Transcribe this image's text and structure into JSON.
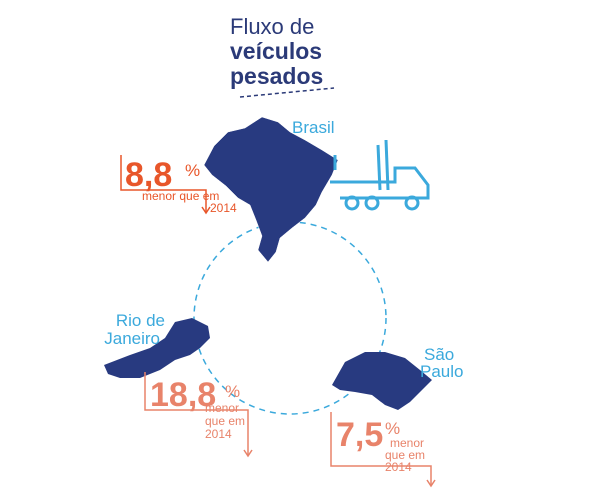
{
  "title": {
    "lines": [
      "Fluxo de",
      "veículos",
      "pesados"
    ]
  },
  "regions": [
    {
      "name": [
        "Brasil"
      ],
      "value": "8,8",
      "unit": "%",
      "note": [
        "menor que em",
        "2014"
      ]
    },
    {
      "name": [
        "Rio de",
        "Janeiro"
      ],
      "value": "18,8",
      "unit": "%",
      "note": [
        "menor",
        "que em",
        "2014"
      ]
    },
    {
      "name": [
        "São",
        "Paulo"
      ],
      "value": "7,5",
      "unit": "%",
      "note": [
        "menor",
        "que em",
        "2014"
      ]
    }
  ]
}
